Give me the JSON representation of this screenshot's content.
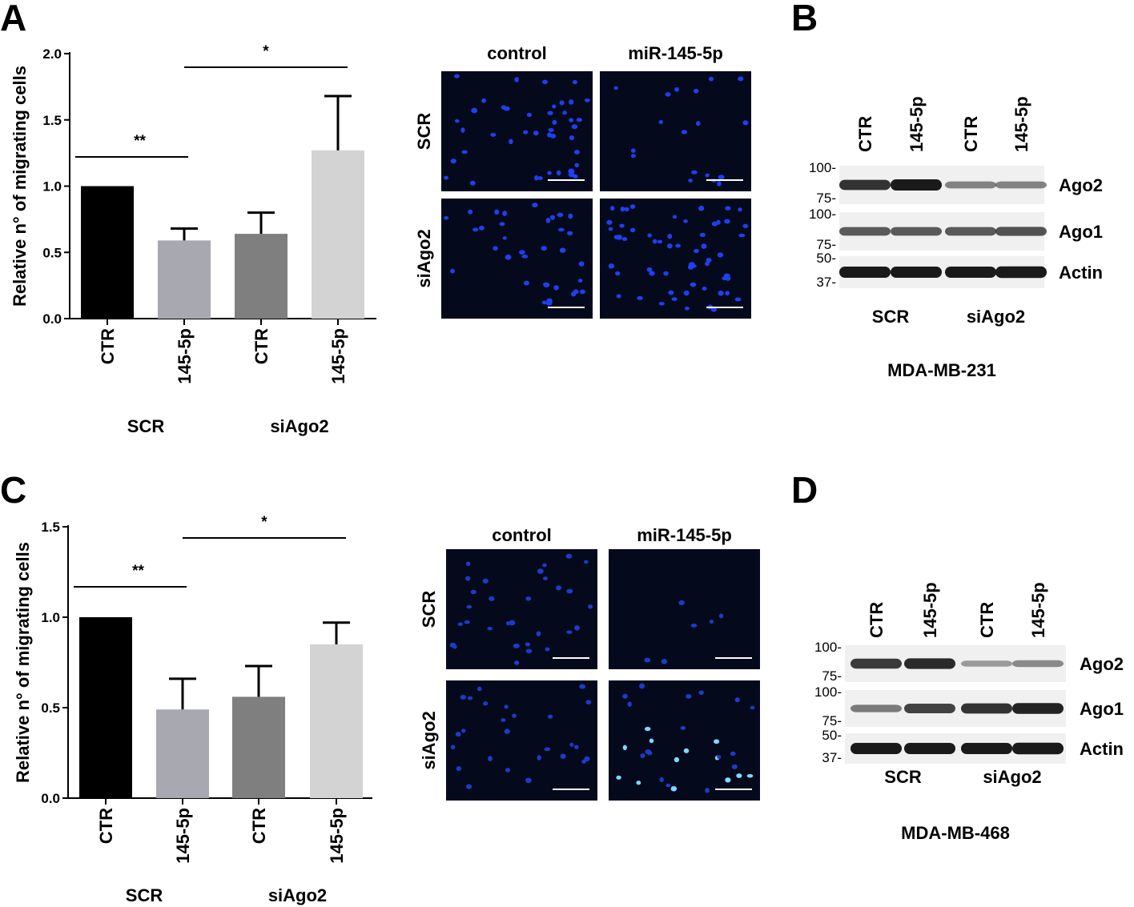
{
  "panels": {
    "A": "A",
    "B": "B",
    "C": "C",
    "D": "D"
  },
  "chart_data": [
    {
      "panel": "A",
      "type": "bar",
      "ylabel": "Relative n° of migrating cells",
      "xlabel": "",
      "ylim": [
        0,
        2.0
      ],
      "yticks": [
        "0.0",
        "0.5",
        "1.0",
        "1.5",
        "2.0"
      ],
      "categories": [
        "CTR",
        "145-5p",
        "CTR",
        "145-5p"
      ],
      "groups": [
        "SCR",
        "siAgo2"
      ],
      "values": [
        1.0,
        0.59,
        0.64,
        1.27
      ],
      "errors": [
        0,
        0.09,
        0.16,
        0.41
      ],
      "colors": [
        "#000000",
        "#a8a8b0",
        "#7f7f7f",
        "#d3d3d3"
      ],
      "significance": [
        {
          "label": "**",
          "from": 0,
          "to": 1
        },
        {
          "label": "*",
          "from": 1,
          "to": 3
        }
      ]
    },
    {
      "panel": "C",
      "type": "bar",
      "ylabel": "Relative n° of migrating cells",
      "xlabel": "",
      "ylim": [
        0,
        1.5
      ],
      "yticks": [
        "0.0",
        "0.5",
        "1.0",
        "1.5"
      ],
      "categories": [
        "CTR",
        "145-5p",
        "CTR",
        "145-5p"
      ],
      "groups": [
        "SCR",
        "siAgo2"
      ],
      "values": [
        1.0,
        0.49,
        0.56,
        0.85
      ],
      "errors": [
        0,
        0.17,
        0.17,
        0.12
      ],
      "colors": [
        "#000000",
        "#a8a8b0",
        "#7f7f7f",
        "#d3d3d3"
      ],
      "significance": [
        {
          "label": "**",
          "from": 0,
          "to": 1
        },
        {
          "label": "*",
          "from": 1,
          "to": 3
        }
      ]
    }
  ],
  "micrographs": {
    "col_labels": [
      "control",
      "miR-145-5p"
    ],
    "row_labels": [
      "SCR",
      "siAgo2"
    ]
  },
  "blots": {
    "lanes": [
      "CTR",
      "145-5p",
      "CTR",
      "145-5p"
    ],
    "groups": [
      "SCR",
      "siAgo2"
    ],
    "proteins": [
      "Ago2",
      "Ago1",
      "Actin"
    ],
    "markers_top": [
      "100-",
      "75-"
    ],
    "markers_mid": [
      "100-",
      "75-"
    ],
    "markers_bot": [
      "50-",
      "37-"
    ],
    "B_cell_line": "MDA-MB-231",
    "D_cell_line": "MDA-MB-468"
  },
  "colors": {
    "micrograph_bg": "#05091c",
    "nucleus": "#1f3ff0",
    "blot_bg": "#f0f0f0",
    "band": "#1a1a1a"
  }
}
